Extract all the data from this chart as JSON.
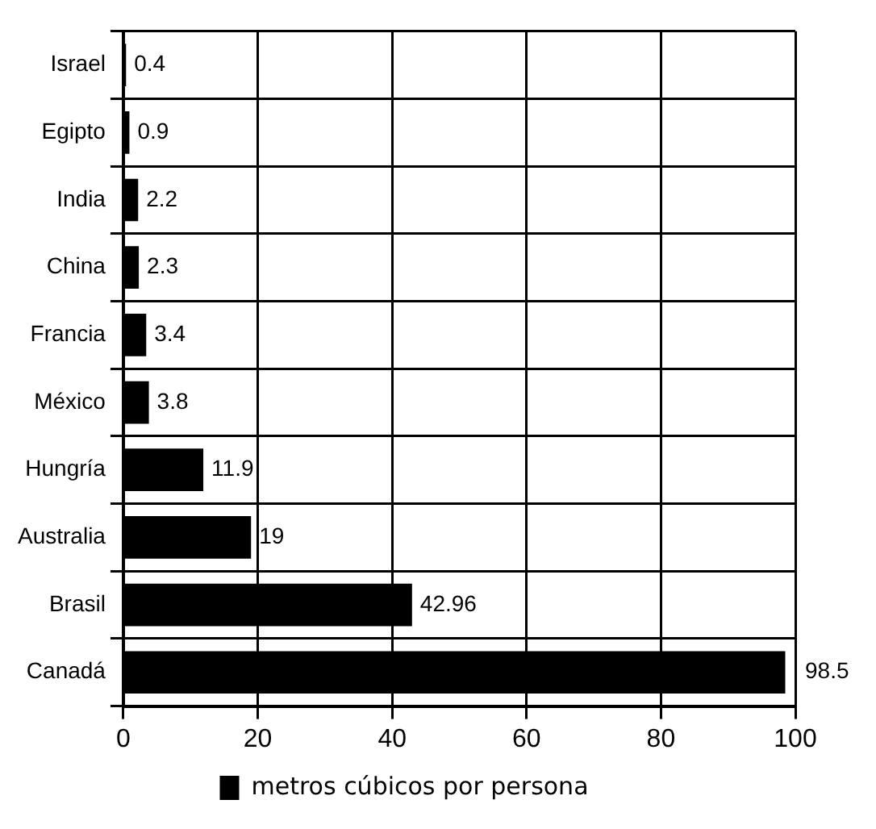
{
  "chart_data": {
    "type": "bar",
    "orientation": "horizontal",
    "categories": [
      "Israel",
      "Egipto",
      "India",
      "China",
      "Francia",
      "México",
      "Hungría",
      "Australia",
      "Brasil",
      "Canadá"
    ],
    "series": [
      {
        "name": "metros cúbicos por persona",
        "color": "#000000",
        "values": [
          0.4,
          0.9,
          2.2,
          2.3,
          3.4,
          3.8,
          11.9,
          19,
          42.96,
          98.5
        ]
      }
    ],
    "xlim": [
      0,
      100
    ],
    "xticks": [
      0,
      20,
      40,
      60,
      80,
      100
    ],
    "grid": true,
    "legend": "bottom",
    "data_labels": true
  }
}
